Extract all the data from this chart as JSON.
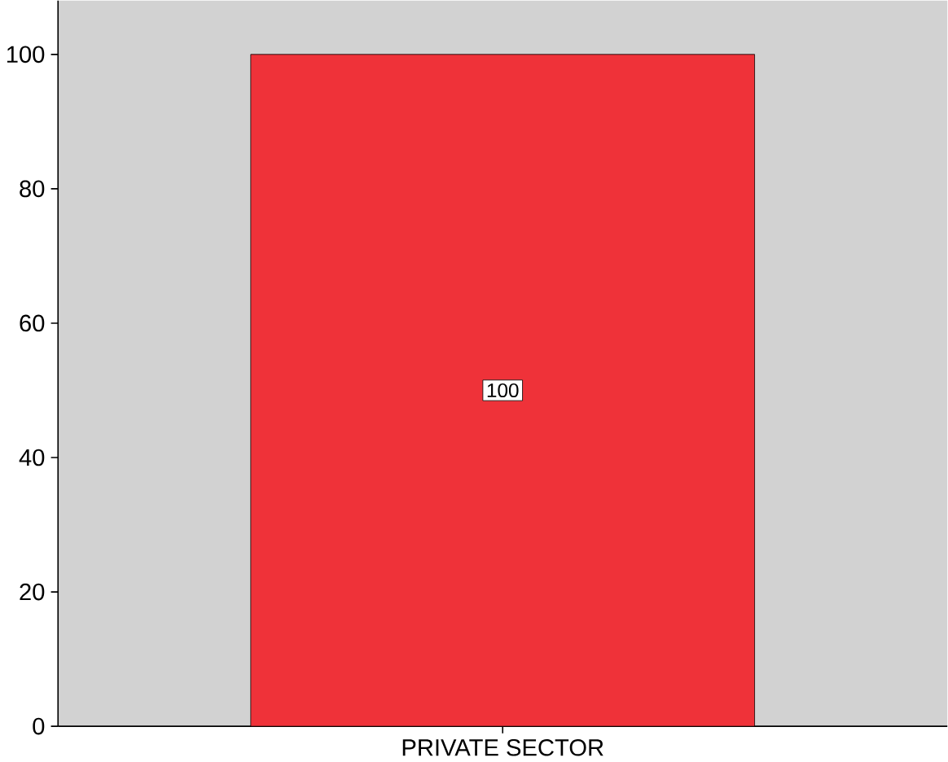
{
  "chart_data": {
    "type": "bar",
    "categories": [
      "PRIVATE SECTOR"
    ],
    "values": [
      100
    ],
    "color": "#ef3239",
    "ylim": [
      0,
      100
    ],
    "yticks": [
      0,
      20,
      40,
      60,
      80,
      100
    ],
    "data_labels": true
  }
}
